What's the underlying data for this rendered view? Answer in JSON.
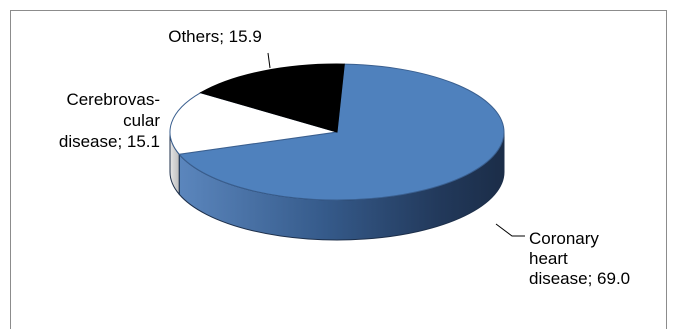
{
  "chart_data": {
    "type": "pie",
    "title": "",
    "slices": [
      {
        "label_lines": [
          "Coronary",
          "heart",
          "disease; 69.0"
        ],
        "value": 69.0,
        "color": "#4f81bd"
      },
      {
        "label_lines": [
          "Cerebrovas-",
          "cular",
          "disease; 15.1"
        ],
        "value": 15.1,
        "color": "#ffffff"
      },
      {
        "label_lines": [
          "Others; 15.9"
        ],
        "value": 15.9,
        "color": "#000000"
      }
    ],
    "legend": "none",
    "style": "3d"
  }
}
